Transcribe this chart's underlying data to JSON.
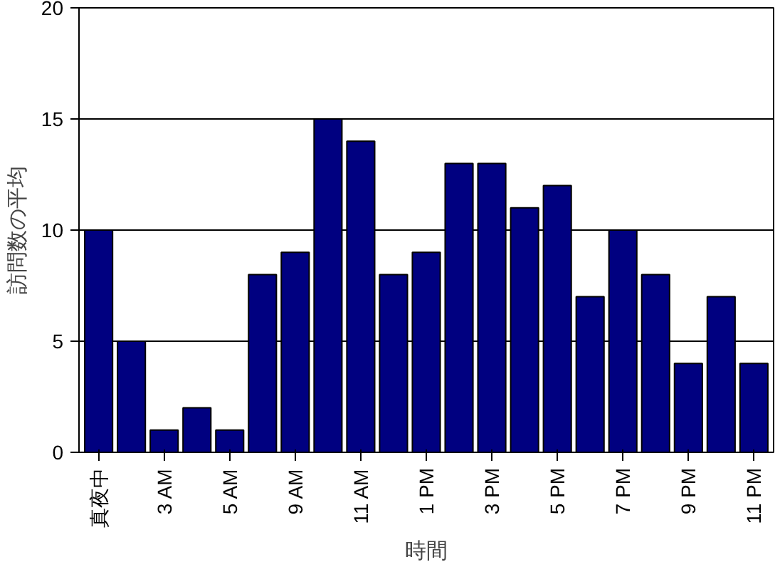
{
  "chart_data": {
    "type": "bar",
    "xlabel": "時間",
    "ylabel": "訪問数の平均",
    "categories": [
      "真夜中",
      null,
      "3 AM",
      null,
      "5 AM",
      null,
      "9 AM",
      null,
      "11 AM",
      null,
      "1 PM",
      null,
      "3 PM",
      null,
      "5 PM",
      null,
      "7 PM",
      null,
      "9 PM",
      null,
      "11 PM"
    ],
    "values": [
      10,
      5,
      1,
      2,
      1,
      8,
      9,
      15,
      14,
      8,
      9,
      13,
      13,
      11,
      12,
      7,
      10,
      8,
      4,
      7,
      4
    ],
    "color": "#000080",
    "ylim": [
      0,
      20
    ],
    "yticks": [
      0,
      5,
      10,
      15,
      20
    ],
    "grid": "y"
  }
}
